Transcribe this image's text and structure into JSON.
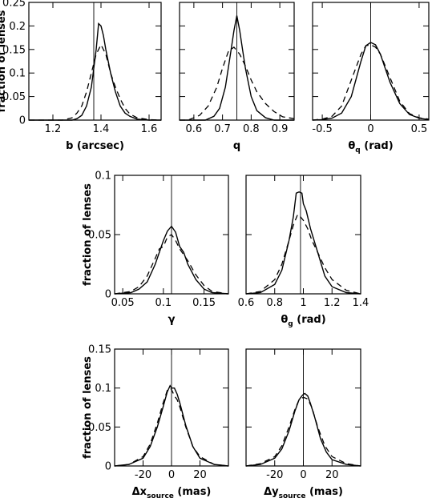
{
  "chart_data": [
    {
      "id": "b",
      "type": "line",
      "xlabel": "b (arcsec)",
      "ylabel": "fraction of lenses",
      "xlim": [
        1.1,
        1.65
      ],
      "ylim": [
        0,
        0.25
      ],
      "xticks": [
        1.2,
        1.4,
        1.6
      ],
      "xtick_labels": [
        "1.2",
        "1.4",
        "1.6"
      ],
      "yticks": [
        0,
        0.05,
        0.1,
        0.15,
        0.2,
        0.25
      ],
      "ytick_labels": [
        "0",
        "0.05",
        "0.1",
        "0.15",
        "0.2",
        "0.25"
      ],
      "reference_x": 1.37,
      "series": [
        {
          "style": "solid",
          "x": [
            1.1,
            1.28,
            1.3,
            1.32,
            1.34,
            1.36,
            1.38,
            1.39,
            1.4,
            1.41,
            1.42,
            1.44,
            1.46,
            1.48,
            1.5,
            1.52,
            1.55,
            1.6,
            1.65
          ],
          "y": [
            0,
            0,
            0.003,
            0.01,
            0.03,
            0.07,
            0.15,
            0.205,
            0.2,
            0.18,
            0.15,
            0.1,
            0.06,
            0.03,
            0.015,
            0.008,
            0.002,
            0,
            0
          ]
        },
        {
          "style": "dashed",
          "x": [
            1.1,
            1.24,
            1.28,
            1.3,
            1.32,
            1.34,
            1.36,
            1.38,
            1.4,
            1.42,
            1.44,
            1.46,
            1.48,
            1.5,
            1.52,
            1.55,
            1.6,
            1.65
          ],
          "y": [
            0,
            0,
            0.005,
            0.015,
            0.03,
            0.06,
            0.1,
            0.14,
            0.16,
            0.14,
            0.1,
            0.07,
            0.045,
            0.025,
            0.013,
            0.005,
            0.001,
            0
          ]
        }
      ]
    },
    {
      "id": "q",
      "type": "line",
      "xlabel": "q",
      "ylabel": "",
      "xlim": [
        0.55,
        0.95
      ],
      "ylim": [
        0,
        0.25
      ],
      "xticks": [
        0.6,
        0.7,
        0.8,
        0.9
      ],
      "xtick_labels": [
        "0.6",
        "0.7",
        "0.8",
        "0.9"
      ],
      "yticks": [
        0,
        0.05,
        0.1,
        0.15,
        0.2,
        0.25
      ],
      "ytick_labels": [],
      "reference_x": 0.75,
      "series": [
        {
          "style": "solid",
          "x": [
            0.55,
            0.64,
            0.67,
            0.69,
            0.71,
            0.72,
            0.73,
            0.74,
            0.75,
            0.76,
            0.77,
            0.78,
            0.8,
            0.82,
            0.85,
            0.88,
            0.95
          ],
          "y": [
            0,
            0,
            0.008,
            0.025,
            0.07,
            0.11,
            0.15,
            0.19,
            0.222,
            0.19,
            0.15,
            0.11,
            0.05,
            0.02,
            0.005,
            0,
            0
          ]
        },
        {
          "style": "dashed",
          "x": [
            0.55,
            0.58,
            0.62,
            0.65,
            0.68,
            0.7,
            0.72,
            0.74,
            0.76,
            0.78,
            0.8,
            0.82,
            0.85,
            0.88,
            0.91,
            0.95
          ],
          "y": [
            0,
            0,
            0.01,
            0.03,
            0.07,
            0.11,
            0.145,
            0.155,
            0.14,
            0.115,
            0.085,
            0.06,
            0.035,
            0.018,
            0.007,
            0.003
          ]
        }
      ]
    },
    {
      "id": "theta_q",
      "type": "line",
      "xlabel": "θq (rad)",
      "ylabel": "",
      "xlim": [
        -0.6,
        0.6
      ],
      "ylim": [
        0,
        0.25
      ],
      "xticks": [
        -0.5,
        0,
        0.5
      ],
      "xtick_labels": [
        "-0.5",
        "0",
        "0.5"
      ],
      "yticks": [
        0,
        0.05,
        0.1,
        0.15,
        0.2,
        0.25
      ],
      "ytick_labels": [],
      "reference_x": 0,
      "series": [
        {
          "style": "solid",
          "x": [
            -0.6,
            -0.5,
            -0.4,
            -0.3,
            -0.2,
            -0.1,
            -0.05,
            0,
            0.05,
            0.1,
            0.15,
            0.2,
            0.3,
            0.4,
            0.5,
            0.6
          ],
          "y": [
            0,
            0.001,
            0.004,
            0.015,
            0.05,
            0.125,
            0.158,
            0.165,
            0.16,
            0.14,
            0.11,
            0.08,
            0.035,
            0.012,
            0.004,
            0.001
          ]
        },
        {
          "style": "dashed",
          "x": [
            -0.6,
            -0.5,
            -0.4,
            -0.3,
            -0.2,
            -0.1,
            -0.05,
            0,
            0.05,
            0.1,
            0.2,
            0.3,
            0.4,
            0.5,
            0.6
          ],
          "y": [
            0,
            0.002,
            0.008,
            0.03,
            0.085,
            0.14,
            0.158,
            0.16,
            0.155,
            0.14,
            0.09,
            0.04,
            0.014,
            0.005,
            0.002
          ]
        }
      ]
    },
    {
      "id": "gamma",
      "type": "line",
      "xlabel": "γ",
      "ylabel": "fraction of lenses",
      "xlim": [
        0.04,
        0.18
      ],
      "ylim": [
        0,
        0.1
      ],
      "xticks": [
        0.05,
        0.1,
        0.15
      ],
      "xtick_labels": [
        "0.05",
        "0.1",
        "0.15"
      ],
      "yticks": [
        0,
        0.05,
        0.1
      ],
      "ytick_labels": [
        "0",
        "0.05",
        "0.1"
      ],
      "reference_x": 0.11,
      "series": [
        {
          "style": "solid",
          "x": [
            0.04,
            0.06,
            0.07,
            0.08,
            0.09,
            0.1,
            0.105,
            0.11,
            0.115,
            0.12,
            0.125,
            0.13,
            0.14,
            0.15,
            0.16,
            0.18
          ],
          "y": [
            0,
            0.001,
            0.004,
            0.01,
            0.025,
            0.045,
            0.053,
            0.057,
            0.052,
            0.04,
            0.035,
            0.025,
            0.012,
            0.004,
            0.001,
            0
          ]
        },
        {
          "style": "dashed",
          "x": [
            0.04,
            0.06,
            0.07,
            0.08,
            0.09,
            0.095,
            0.1,
            0.105,
            0.11,
            0.115,
            0.12,
            0.13,
            0.14,
            0.15,
            0.16,
            0.18
          ],
          "y": [
            0,
            0.002,
            0.006,
            0.015,
            0.03,
            0.038,
            0.04,
            0.048,
            0.05,
            0.045,
            0.038,
            0.028,
            0.016,
            0.007,
            0.002,
            0
          ]
        }
      ]
    },
    {
      "id": "theta_g",
      "type": "line",
      "xlabel": "θg (rad)",
      "ylabel": "",
      "xlim": [
        0.6,
        1.4
      ],
      "ylim": [
        0,
        0.1
      ],
      "xticks": [
        0.6,
        0.8,
        1.0,
        1.2,
        1.4
      ],
      "xtick_labels": [
        "0.6",
        "0.8",
        "1",
        "1.2",
        "1.4"
      ],
      "yticks": [
        0,
        0.05,
        0.1
      ],
      "ytick_labels": [],
      "reference_x": 0.98,
      "series": [
        {
          "style": "solid",
          "x": [
            0.6,
            0.7,
            0.8,
            0.85,
            0.9,
            0.93,
            0.95,
            0.97,
            0.99,
            1.0,
            1.02,
            1.05,
            1.1,
            1.15,
            1.2,
            1.3,
            1.4
          ],
          "y": [
            0,
            0.001,
            0.008,
            0.02,
            0.045,
            0.065,
            0.085,
            0.086,
            0.085,
            0.076,
            0.07,
            0.055,
            0.035,
            0.015,
            0.006,
            0.001,
            0
          ]
        },
        {
          "style": "dashed",
          "x": [
            0.6,
            0.7,
            0.8,
            0.85,
            0.9,
            0.93,
            0.96,
            0.98,
            1.0,
            1.03,
            1.06,
            1.1,
            1.15,
            1.2,
            1.3,
            1.4
          ],
          "y": [
            0,
            0.002,
            0.012,
            0.025,
            0.045,
            0.058,
            0.067,
            0.065,
            0.062,
            0.055,
            0.045,
            0.035,
            0.022,
            0.012,
            0.003,
            0
          ]
        }
      ]
    },
    {
      "id": "dx_source",
      "type": "line",
      "xlabel": "Δxsource (mas)",
      "ylabel": "fraction of lenses",
      "xlim": [
        -40,
        40
      ],
      "ylim": [
        0,
        0.15
      ],
      "xticks": [
        -20,
        0,
        20
      ],
      "xtick_labels": [
        "-20",
        "0",
        "20"
      ],
      "yticks": [
        0,
        0.05,
        0.1,
        0.15
      ],
      "ytick_labels": [
        "0",
        "0.05",
        "0.1",
        "0.15"
      ],
      "reference_x": 0,
      "series": [
        {
          "style": "solid",
          "x": [
            -40,
            -30,
            -20,
            -15,
            -10,
            -6,
            -3,
            -1,
            0,
            2,
            4,
            6,
            10,
            15,
            20,
            30,
            40
          ],
          "y": [
            0,
            0.002,
            0.01,
            0.025,
            0.05,
            0.075,
            0.095,
            0.103,
            0.1,
            0.1,
            0.092,
            0.08,
            0.052,
            0.025,
            0.01,
            0.002,
            0
          ]
        },
        {
          "style": "dashed",
          "x": [
            -40,
            -30,
            -20,
            -15,
            -10,
            -6,
            -3,
            -1,
            0,
            2,
            4,
            6,
            10,
            15,
            20,
            30,
            40
          ],
          "y": [
            0,
            0.002,
            0.012,
            0.028,
            0.055,
            0.08,
            0.097,
            0.1,
            0.098,
            0.09,
            0.085,
            0.075,
            0.05,
            0.025,
            0.012,
            0.002,
            0
          ]
        }
      ]
    },
    {
      "id": "dy_source",
      "type": "line",
      "xlabel": "Δysource (mas)",
      "ylabel": "",
      "xlim": [
        -40,
        40
      ],
      "ylim": [
        0,
        0.15
      ],
      "xticks": [
        -20,
        0,
        20
      ],
      "xtick_labels": [
        "-20",
        "0",
        "20"
      ],
      "yticks": [
        0,
        0.05,
        0.1,
        0.15
      ],
      "ytick_labels": [],
      "reference_x": 0,
      "series": [
        {
          "style": "solid",
          "x": [
            -40,
            -30,
            -20,
            -15,
            -10,
            -6,
            -3,
            -1,
            0,
            1,
            3,
            5,
            8,
            12,
            16,
            20,
            30,
            40
          ],
          "y": [
            0,
            0.002,
            0.01,
            0.022,
            0.045,
            0.07,
            0.085,
            0.09,
            0.092,
            0.093,
            0.09,
            0.08,
            0.062,
            0.035,
            0.018,
            0.008,
            0.002,
            0
          ]
        },
        {
          "style": "dashed",
          "x": [
            -40,
            -30,
            -20,
            -15,
            -10,
            -6,
            -3,
            0,
            3,
            6,
            10,
            15,
            20,
            30,
            40
          ],
          "y": [
            0,
            0.003,
            0.012,
            0.026,
            0.05,
            0.072,
            0.085,
            0.088,
            0.086,
            0.075,
            0.05,
            0.026,
            0.012,
            0.003,
            0
          ]
        }
      ]
    }
  ]
}
